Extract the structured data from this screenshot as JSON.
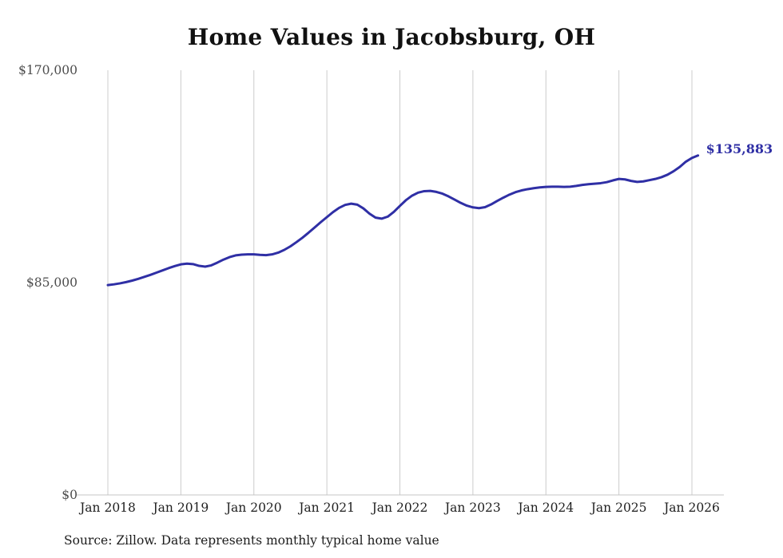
{
  "title": "Home Values in Jacobsburg, OH",
  "source_note": "Source: Zillow. Data represents monthly typical home value",
  "colors": {
    "line": "#2f2fa5",
    "grid": "#cccccc",
    "axis_line": "#c4c4c4",
    "y_tick_text": "#4d4d4d",
    "x_tick_text": "#1f1f1f",
    "title_text": "#111111",
    "background": "#ffffff"
  },
  "chart_data": {
    "type": "line",
    "title": "Home Values in Jacobsburg, OH",
    "x_start_month": "Jan 2018",
    "x_end_month": "Feb 2026",
    "ylim": [
      0,
      170000
    ],
    "grid": "vertical",
    "legend": "none",
    "end_label": "$135,883",
    "end_value": 135883,
    "yticks": [
      {
        "value": 0,
        "label": "$0"
      },
      {
        "value": 85000,
        "label": "$85,000"
      },
      {
        "value": 170000,
        "label": "$170,000"
      }
    ],
    "xticks": [
      {
        "index": 0,
        "label": "Jan 2018"
      },
      {
        "index": 12,
        "label": "Jan 2019"
      },
      {
        "index": 24,
        "label": "Jan 2020"
      },
      {
        "index": 36,
        "label": "Jan 2021"
      },
      {
        "index": 48,
        "label": "Jan 2022"
      },
      {
        "index": 60,
        "label": "Jan 2023"
      },
      {
        "index": 72,
        "label": "Jan 2024"
      },
      {
        "index": 84,
        "label": "Jan 2025"
      },
      {
        "index": 96,
        "label": "Jan 2026"
      }
    ],
    "series": [
      {
        "name": "Monthly typical home value",
        "values": [
          84000,
          84300,
          84700,
          85200,
          85800,
          86500,
          87300,
          88100,
          89000,
          89900,
          90800,
          91600,
          92300,
          92600,
          92400,
          91700,
          91400,
          91900,
          93000,
          94200,
          95200,
          95900,
          96200,
          96300,
          96300,
          96100,
          96000,
          96300,
          97000,
          98100,
          99500,
          101200,
          103000,
          105000,
          107100,
          109200,
          111200,
          113200,
          114900,
          116100,
          116600,
          116200,
          114700,
          112600,
          111000,
          110600,
          111400,
          113300,
          115700,
          118000,
          119800,
          121000,
          121600,
          121700,
          121300,
          120600,
          119500,
          118200,
          116900,
          115800,
          115100,
          114800,
          115200,
          116300,
          117700,
          119000,
          120200,
          121200,
          121900,
          122400,
          122800,
          123100,
          123300,
          123400,
          123400,
          123300,
          123400,
          123700,
          124100,
          124400,
          124600,
          124800,
          125200,
          125900,
          126500,
          126300,
          125700,
          125300,
          125500,
          126000,
          126500,
          127200,
          128200,
          129600,
          131300,
          133400,
          134900,
          135883
        ]
      }
    ]
  }
}
